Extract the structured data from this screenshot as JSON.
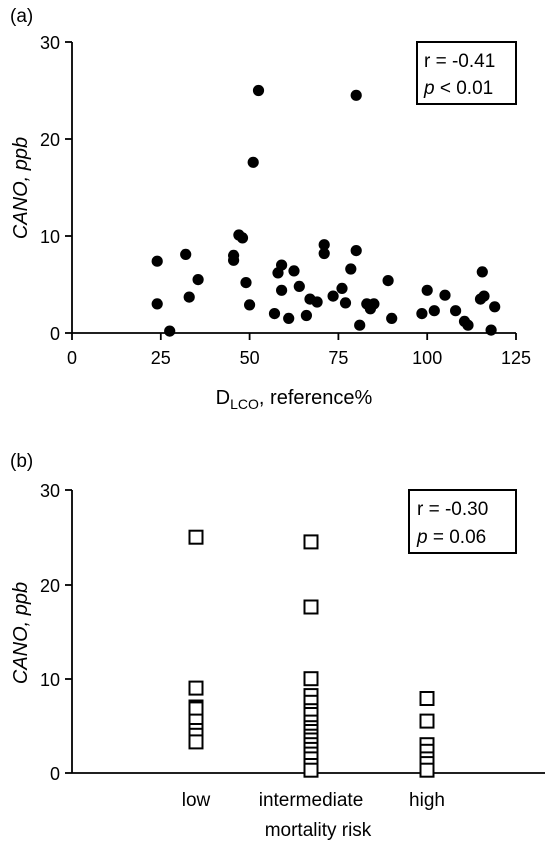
{
  "chart_data": [
    {
      "panel_label": "(a)",
      "type": "scatter",
      "xlabel_main": "D",
      "xlabel_sub": "LCO",
      "xlabel_rest": ", reference%",
      "ylabel": "CANO, ppb",
      "xlim": [
        0,
        125
      ],
      "ylim": [
        0,
        30
      ],
      "xticks": [
        0,
        25,
        50,
        75,
        100,
        125
      ],
      "yticks": [
        0,
        10,
        20,
        30
      ],
      "stats": {
        "r": "r = -0.41",
        "p_symbol": "p",
        "p_rest": " < 0.01"
      },
      "marker": "filled-circle",
      "points": [
        {
          "x": 24,
          "y": 7.4
        },
        {
          "x": 24,
          "y": 3.0
        },
        {
          "x": 27.5,
          "y": 0.2
        },
        {
          "x": 32,
          "y": 8.1
        },
        {
          "x": 33,
          "y": 3.7
        },
        {
          "x": 35.5,
          "y": 5.5
        },
        {
          "x": 45.5,
          "y": 8.0
        },
        {
          "x": 45.5,
          "y": 7.5
        },
        {
          "x": 47,
          "y": 10.1
        },
        {
          "x": 48,
          "y": 9.8
        },
        {
          "x": 49,
          "y": 5.2
        },
        {
          "x": 50,
          "y": 2.9
        },
        {
          "x": 51,
          "y": 17.6
        },
        {
          "x": 52.5,
          "y": 25.0
        },
        {
          "x": 57,
          "y": 2.0
        },
        {
          "x": 58,
          "y": 6.2
        },
        {
          "x": 59,
          "y": 7.0
        },
        {
          "x": 59,
          "y": 4.4
        },
        {
          "x": 61,
          "y": 1.5
        },
        {
          "x": 62.5,
          "y": 6.4
        },
        {
          "x": 64,
          "y": 4.8
        },
        {
          "x": 66,
          "y": 1.8
        },
        {
          "x": 67,
          "y": 3.5
        },
        {
          "x": 69,
          "y": 3.2
        },
        {
          "x": 71,
          "y": 9.1
        },
        {
          "x": 71,
          "y": 8.2
        },
        {
          "x": 73.5,
          "y": 3.8
        },
        {
          "x": 76,
          "y": 4.6
        },
        {
          "x": 77,
          "y": 3.1
        },
        {
          "x": 78.5,
          "y": 6.6
        },
        {
          "x": 80,
          "y": 24.5
        },
        {
          "x": 80,
          "y": 8.5
        },
        {
          "x": 81,
          "y": 0.8
        },
        {
          "x": 83,
          "y": 3.0
        },
        {
          "x": 84,
          "y": 2.5
        },
        {
          "x": 85,
          "y": 3.0
        },
        {
          "x": 89,
          "y": 5.4
        },
        {
          "x": 90,
          "y": 1.5
        },
        {
          "x": 98.5,
          "y": 2.0
        },
        {
          "x": 100,
          "y": 4.4
        },
        {
          "x": 102,
          "y": 2.3
        },
        {
          "x": 105,
          "y": 3.9
        },
        {
          "x": 108,
          "y": 2.3
        },
        {
          "x": 110.5,
          "y": 1.2
        },
        {
          "x": 111.5,
          "y": 0.8
        },
        {
          "x": 115,
          "y": 3.5
        },
        {
          "x": 115.5,
          "y": 6.3
        },
        {
          "x": 116,
          "y": 3.8
        },
        {
          "x": 118,
          "y": 0.3
        },
        {
          "x": 119,
          "y": 2.7
        }
      ]
    },
    {
      "panel_label": "(b)",
      "type": "scatter",
      "ylabel": "CANO, ppb",
      "ylim": [
        0,
        30
      ],
      "yticks": [
        0,
        10,
        20,
        30
      ],
      "categories": [
        "low",
        "intermediate",
        "high"
      ],
      "xlabel": "mortality risk",
      "stats": {
        "r": "r = -0.30",
        "p_symbol": "p",
        "p_rest": " = 0.06"
      },
      "marker": "open-square",
      "groups": [
        {
          "category": "low",
          "values": [
            25.0,
            9.0,
            7.0,
            6.8,
            5.5,
            4.5,
            4.0,
            3.3
          ]
        },
        {
          "category": "intermediate",
          "values": [
            24.5,
            17.6,
            10.0,
            8.2,
            7.5,
            6.6,
            6.2,
            5.4,
            4.8,
            4.4,
            3.9,
            3.5,
            3.0,
            2.5,
            2.0,
            1.5,
            0.8,
            0.3
          ]
        },
        {
          "category": "high",
          "values": [
            7.9,
            5.5,
            3.0,
            2.3,
            1.5,
            1.0,
            0.3
          ]
        }
      ]
    }
  ]
}
